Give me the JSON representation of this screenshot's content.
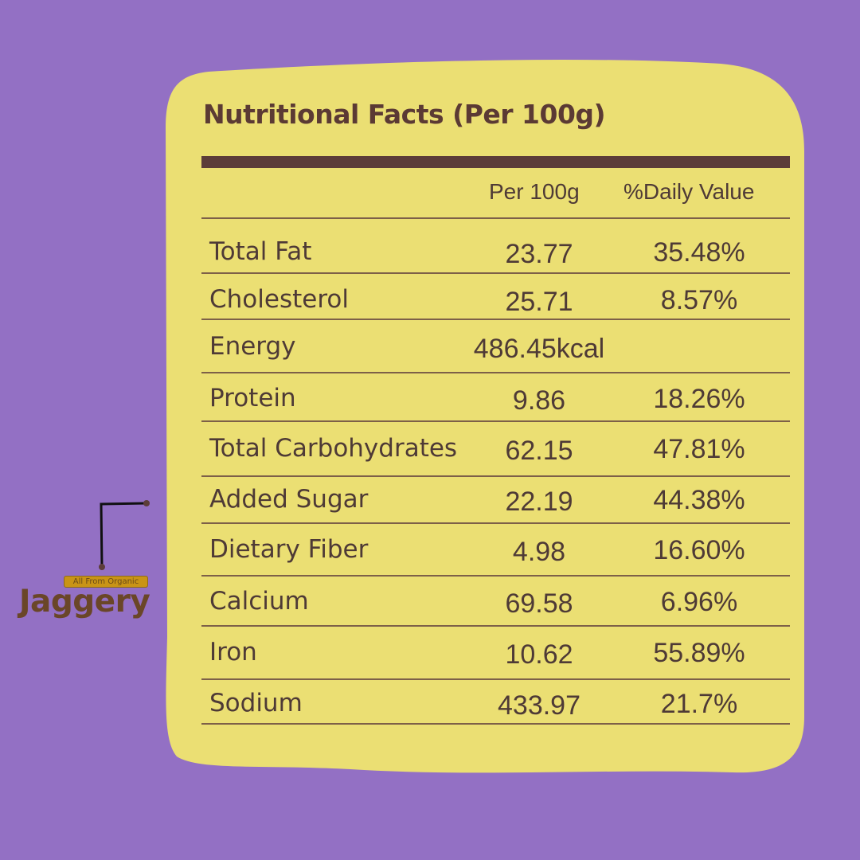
{
  "title": "Nutritional Facts (Per 100g)",
  "columns": {
    "per": "Per 100g",
    "dv": "%Daily Value"
  },
  "rows": [
    {
      "name": "Total Fat",
      "per": "23.77",
      "dv": "35.48%"
    },
    {
      "name": "Cholesterol",
      "per": "25.71",
      "dv": "8.57%"
    },
    {
      "name": "Energy",
      "per": "486.45kcal",
      "dv": ""
    },
    {
      "name": "Protein",
      "per": "9.86",
      "dv": "18.26%"
    },
    {
      "name": "Total Carbohydrates",
      "per": "62.15",
      "dv": "47.81%"
    },
    {
      "name": "Added Sugar",
      "per": "22.19",
      "dv": "44.38%"
    },
    {
      "name": "Dietary Fiber",
      "per": "4.98",
      "dv": "16.60%"
    },
    {
      "name": "Calcium",
      "per": "69.58",
      "dv": "6.96%"
    },
    {
      "name": "Iron",
      "per": "10.62",
      "dv": "55.89%"
    },
    {
      "name": "Sodium",
      "per": "433.97",
      "dv": "21.7%"
    }
  ],
  "logo": {
    "tagline": "All From Organic",
    "word": "Jaggery"
  },
  "colors": {
    "background": "#9370c4",
    "card": "#ebdf73",
    "text": "#4e3a36",
    "accent": "#5c3d39"
  }
}
